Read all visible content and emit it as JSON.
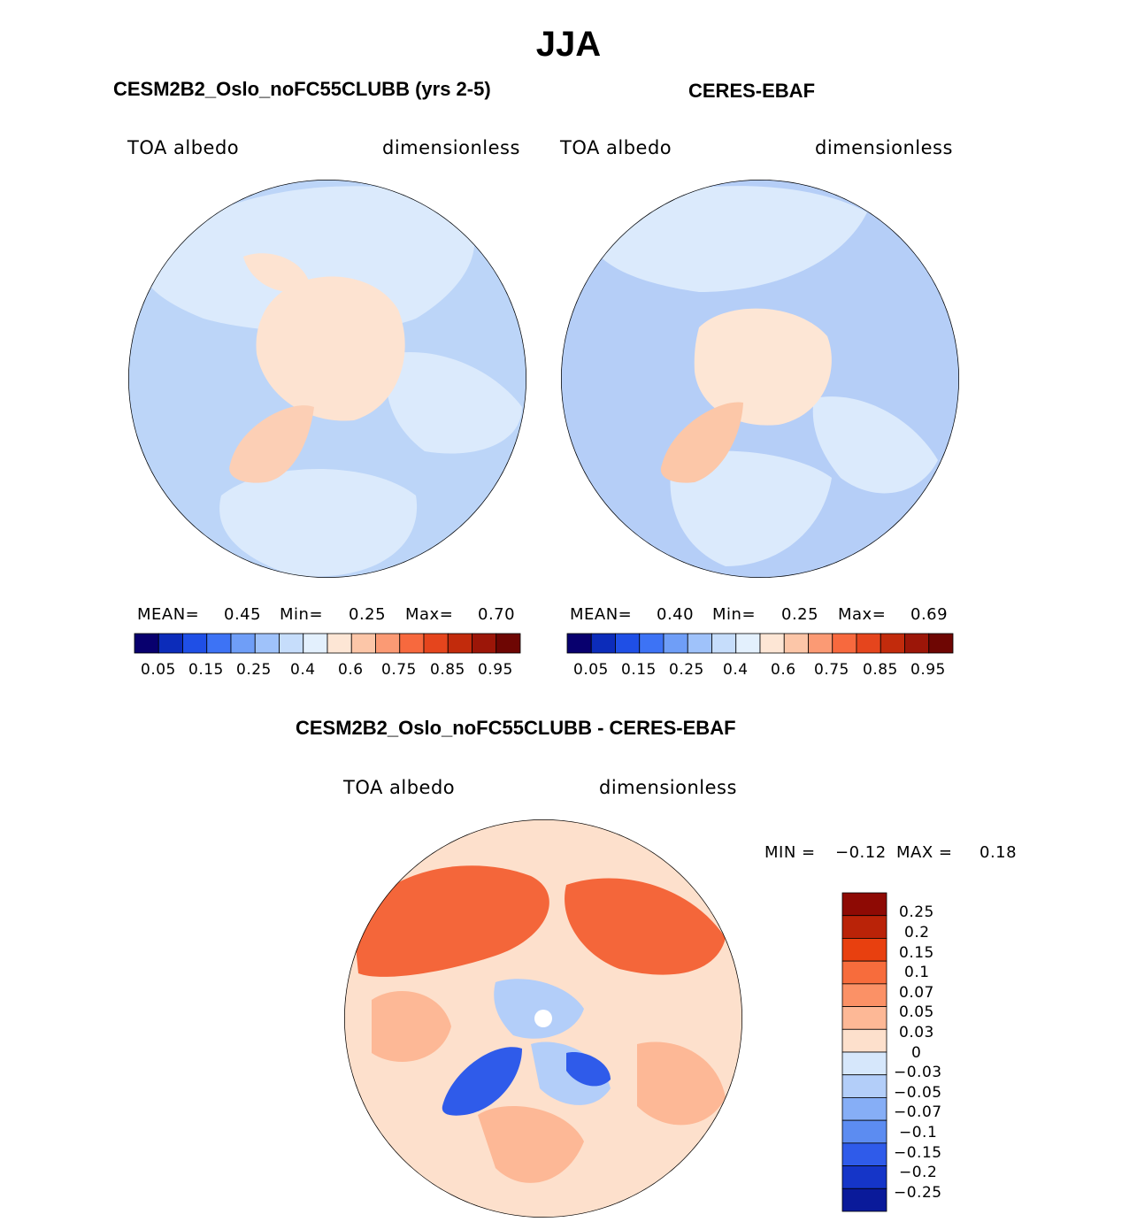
{
  "title": "JJA",
  "panels": {
    "model": {
      "title": "CESM2B2_Oslo_noFC55CLUBB (yrs 2-5)",
      "left_label": "TOA albedo",
      "right_label": "dimensionless",
      "stats": {
        "mean_label": "MEAN=",
        "mean": "0.45",
        "min_label": "Min=",
        "min": "0.25",
        "max_label": "Max=",
        "max": "0.70"
      }
    },
    "obs": {
      "title": "CERES-EBAF",
      "left_label": "TOA albedo",
      "right_label": "dimensionless",
      "stats": {
        "mean_label": "MEAN=",
        "mean": "0.40",
        "min_label": "Min=",
        "min": "0.25",
        "max_label": "Max=",
        "max": "0.69"
      }
    },
    "diff": {
      "title": "CESM2B2_Oslo_noFC55CLUBB - CERES-EBAF",
      "left_label": "TOA albedo",
      "right_label": "dimensionless",
      "stats": {
        "min_label": "MIN =",
        "min": "−0.12",
        "max_label": "MAX =",
        "max": "0.18"
      }
    }
  },
  "colorbar_main": {
    "colors": [
      "#08006e",
      "#0c2cba",
      "#1f4fe6",
      "#3d73f5",
      "#6f9ef7",
      "#9fc2fa",
      "#c6ddfb",
      "#e3f0fd",
      "#fde6d5",
      "#fcc6a8",
      "#fb9a74",
      "#f7693e",
      "#e5451d",
      "#c22b0c",
      "#9c1608",
      "#6e0603"
    ],
    "ticks": [
      "0.05",
      "0.15",
      "0.25",
      "0.4",
      "0.6",
      "0.75",
      "0.85",
      "0.95"
    ]
  },
  "colorbar_diff": {
    "colors": [
      "#8e0a04",
      "#ba2308",
      "#e8400f",
      "#f76c3c",
      "#fb9166",
      "#fdb896",
      "#fde0cc",
      "#d6e7fb",
      "#b3cef9",
      "#86aef6",
      "#5c8cf1",
      "#2f5bea",
      "#1535c8",
      "#0a1a9a"
    ],
    "ticks": [
      "0.25",
      "0.2",
      "0.15",
      "0.1",
      "0.07",
      "0.05",
      "0.03",
      "0",
      "−0.03",
      "−0.05",
      "−0.07",
      "−0.1",
      "−0.15",
      "−0.2",
      "−0.25"
    ]
  },
  "map_colors": {
    "ocean_model": "#bcd5f8",
    "light_model": "#dbeafc",
    "ice_model": "#fde3d1",
    "green_model": "#fccfb5",
    "ocean_obs": "#b5cef7",
    "light_obs": "#dbeafc",
    "ice_obs": "#fde6d5",
    "green_obs": "#fcc7a8",
    "diff_base": "#fde0cc",
    "diff_mid": "#fdb896",
    "diff_high": "#f4663a",
    "diff_blue": "#b3cef9",
    "diff_dblue": "#2f5bea"
  }
}
